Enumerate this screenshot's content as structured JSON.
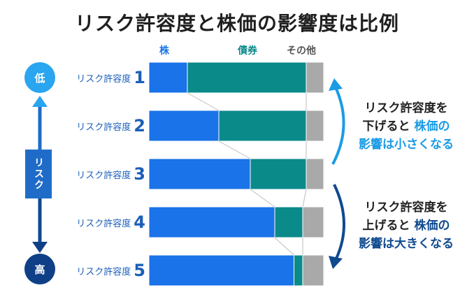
{
  "title": "リスク許容度と株価の影響度は比例",
  "chart_data": {
    "type": "bar",
    "stacked": true,
    "orientation": "horizontal",
    "categories": [
      "リスク許容度 1",
      "リスク許容度 2",
      "リスク許容度 3",
      "リスク許容度 4",
      "リスク許容度 5"
    ],
    "series": [
      {
        "name": "株",
        "values": [
          22,
          40,
          58,
          72,
          83
        ],
        "color": "#1a73e8"
      },
      {
        "name": "債券",
        "values": [
          68,
          50,
          32,
          16,
          5
        ],
        "color": "#0b8a8a"
      },
      {
        "name": "その他",
        "values": [
          10,
          10,
          10,
          12,
          12
        ],
        "color": "#a9a9a9"
      }
    ],
    "xlim": [
      0,
      100
    ],
    "legend_position": "top"
  },
  "rows": [
    {
      "label": "リスク許容度",
      "num": "1"
    },
    {
      "label": "リスク許容度",
      "num": "2"
    },
    {
      "label": "リスク許容度",
      "num": "3"
    },
    {
      "label": "リスク許容度",
      "num": "4"
    },
    {
      "label": "リスク許容度",
      "num": "5"
    }
  ],
  "scale": {
    "low": "低",
    "high": "高",
    "axis_label": "リスク"
  },
  "note_down": {
    "line1": "リスク許容度を",
    "line2a": "下げると",
    "line2b": "株価の",
    "line3a": "影響は小さくなる",
    "color": "#1a9be6"
  },
  "note_up": {
    "line1": "リスク許容度を",
    "line2a": "上げると",
    "line2b": "株価の",
    "line3a": "影響は大きくなる",
    "color": "#0f4a8f"
  }
}
